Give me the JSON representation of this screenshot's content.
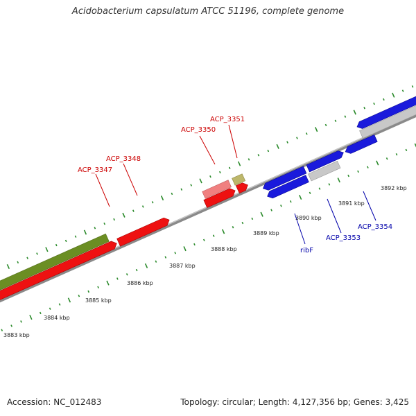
{
  "title": "Acidobacterium capsulatum ATCC 51196, complete genome",
  "footer": {
    "accession": "Accession: NC_012483",
    "topology": "Topology: circular; Length: 4,127,356 bp; Genes: 3,425"
  },
  "axis": {
    "unit": "kbp",
    "ticks": [
      "3883 kbp",
      "3884 kbp",
      "3885 kbp",
      "3886 kbp",
      "3887 kbp",
      "3888 kbp",
      "3889 kbp",
      "3890 kbp",
      "3891 kbp",
      "3892 kbp"
    ]
  },
  "colors": {
    "forward_gene": "#ee1111",
    "forward_gene_light": "#f08080",
    "reverse_gene": "#1a1adc",
    "reverse_gene_grey": "#c8c8c8",
    "olive_gene": "#6b8e23",
    "khaki_gene": "#bdb76b",
    "tick_mark": "#2a8a2a",
    "backbone": "#8a8a8a",
    "forward_label": "#cc0000",
    "reverse_label": "#0000aa"
  },
  "genes": {
    "forward_labels": [
      "ACP_3347",
      "ACP_3348",
      "ACP_3350",
      "ACP_3351"
    ],
    "reverse_labels": [
      "ribF",
      "ACP_3353",
      "ACP_3354"
    ]
  }
}
